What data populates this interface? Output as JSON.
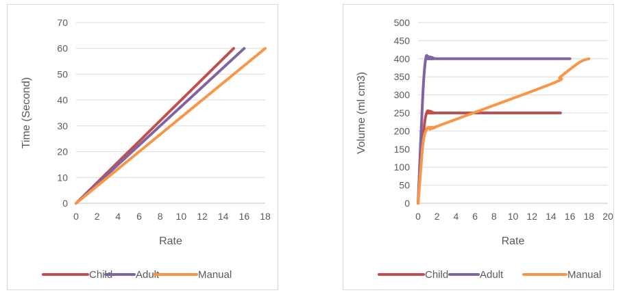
{
  "chart_data": [
    {
      "type": "line",
      "xlabel": "Rate",
      "ylabel": "Time (Second)",
      "xlim": [
        0,
        18
      ],
      "ylim": [
        0,
        70
      ],
      "xticks": [
        0,
        2,
        4,
        6,
        8,
        10,
        12,
        14,
        16,
        18
      ],
      "yticks": [
        0,
        10,
        20,
        30,
        40,
        50,
        60,
        70
      ],
      "grid": true,
      "legend_position": "bottom",
      "series": [
        {
          "name": "Child",
          "color": "#c0504d",
          "x": [
            0,
            15
          ],
          "y": [
            0,
            60
          ]
        },
        {
          "name": "Adult",
          "color": "#8064a2",
          "x": [
            0,
            16
          ],
          "y": [
            0,
            60
          ]
        },
        {
          "name": "Manual",
          "color": "#f79646",
          "x": [
            0,
            18
          ],
          "y": [
            0,
            60
          ]
        }
      ]
    },
    {
      "type": "line",
      "xlabel": "Rate",
      "ylabel": "Volume (ml cm3)",
      "xlim": [
        0,
        20
      ],
      "ylim": [
        0,
        500
      ],
      "xticks": [
        0,
        2,
        4,
        6,
        8,
        10,
        12,
        14,
        16,
        18,
        20
      ],
      "yticks": [
        0,
        50,
        100,
        150,
        200,
        250,
        300,
        350,
        400,
        450,
        500
      ],
      "grid": true,
      "legend_position": "bottom",
      "series": [
        {
          "name": "Child",
          "color": "#c0504d",
          "x": [
            0,
            0.6,
            0.9,
            1.2,
            1.7,
            2,
            15
          ],
          "y": [
            0,
            200,
            250,
            255,
            250,
            250,
            250
          ]
        },
        {
          "name": "Adult",
          "color": "#8064a2",
          "x": [
            0,
            0.5,
            0.8,
            1.1,
            1.4,
            1.8,
            2,
            16
          ],
          "y": [
            0,
            300,
            400,
            405,
            404,
            400,
            400,
            400
          ]
        },
        {
          "name": "Manual",
          "color": "#f79646",
          "x": [
            0,
            0.5,
            0.9,
            1.3,
            1.8,
            2.2,
            14,
            15,
            17,
            18
          ],
          "y": [
            0,
            160,
            205,
            210,
            210,
            215,
            330,
            350,
            390,
            400
          ]
        }
      ]
    }
  ]
}
